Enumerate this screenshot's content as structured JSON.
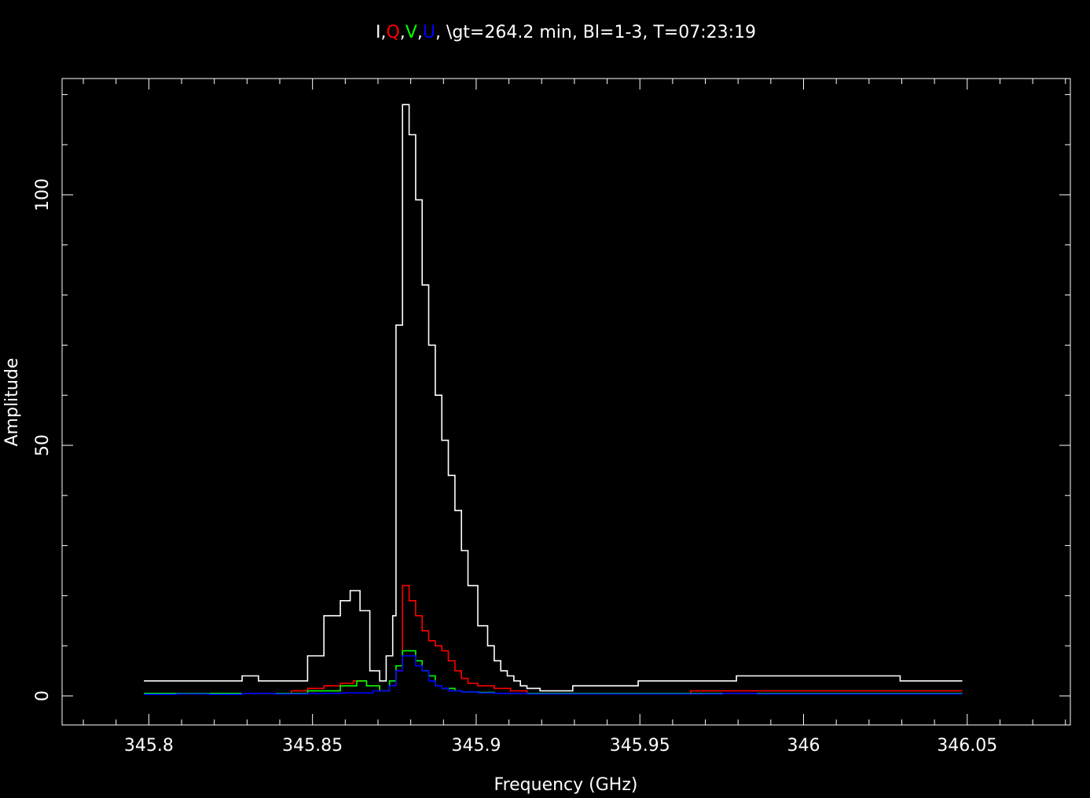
{
  "chart_data": {
    "type": "line",
    "step": true,
    "title": {
      "parts": [
        {
          "text": "I",
          "color": "#ffffff"
        },
        {
          "text": ",",
          "color": "#ffffff"
        },
        {
          "text": "Q",
          "color": "#ff0000"
        },
        {
          "text": ",",
          "color": "#ffffff"
        },
        {
          "text": "V",
          "color": "#00ff00"
        },
        {
          "text": ",",
          "color": "#ffffff"
        },
        {
          "text": "U",
          "color": "#0000ff"
        },
        {
          "text": ", \\gt=264.2 min, Bl=1-3, T=07:23:19",
          "color": "#ffffff"
        }
      ]
    },
    "xlabel": "Frequency (GHz)",
    "ylabel": "Amplitude",
    "xlim": [
      345.7735,
      346.0815
    ],
    "ylim": [
      -5.8,
      123.2
    ],
    "xticks": [
      {
        "value": 345.8,
        "label": "345.8"
      },
      {
        "value": 345.85,
        "label": "345.85"
      },
      {
        "value": 345.9,
        "label": "345.9"
      },
      {
        "value": 345.95,
        "label": "345.95"
      },
      {
        "value": 346.0,
        "label": "346"
      },
      {
        "value": 346.05,
        "label": "346.05"
      }
    ],
    "yticks": [
      {
        "value": 0,
        "label": "0"
      },
      {
        "value": 50,
        "label": "50"
      },
      {
        "value": 100,
        "label": "100"
      }
    ],
    "grid": false,
    "background": "#000000",
    "axis_color": "#ffffff",
    "series": [
      {
        "color": "#ffffff",
        "x": [
          345.7985,
          345.8035,
          345.8085,
          345.8135,
          345.8185,
          345.8235,
          345.8285,
          345.8335,
          345.8385,
          345.8435,
          345.8485,
          345.8535,
          345.8585,
          345.8615,
          345.8645,
          345.8675,
          345.8705,
          345.8725,
          345.8745,
          345.8755,
          345.8775,
          345.8795,
          345.8815,
          345.8835,
          345.8855,
          345.8875,
          345.8895,
          345.8915,
          345.8935,
          345.8955,
          345.8975,
          345.9005,
          345.9035,
          345.9055,
          345.9075,
          345.9095,
          345.9115,
          345.9135,
          345.9155,
          345.9195,
          345.9295,
          345.9395,
          345.9495,
          345.9595,
          345.9695,
          345.9795,
          345.9895,
          345.9995,
          346.0095,
          346.0195,
          346.0295,
          346.0395,
          346.0485
        ],
        "y": [
          3,
          3,
          3,
          3,
          3,
          3,
          4,
          3,
          3,
          3,
          8,
          16,
          19,
          21,
          17,
          5,
          3,
          8,
          16,
          74,
          118,
          112,
          99,
          82,
          70,
          60,
          51,
          44,
          37,
          29,
          22,
          14,
          10,
          7,
          5,
          4,
          3,
          2,
          1.5,
          1,
          2,
          2,
          3,
          3,
          3,
          4,
          4,
          4,
          4,
          4,
          3,
          3,
          3
        ]
      },
      {
        "color": "#ff0000",
        "x": [
          345.7985,
          345.8085,
          345.8185,
          345.8285,
          345.8385,
          345.8435,
          345.8485,
          345.8535,
          345.8585,
          345.8625,
          345.8665,
          345.8705,
          345.8735,
          345.8755,
          345.8775,
          345.8795,
          345.8815,
          345.8835,
          345.8855,
          345.8875,
          345.8895,
          345.8915,
          345.8935,
          345.8955,
          345.8975,
          345.9005,
          345.9055,
          345.9105,
          345.9155,
          345.9255,
          345.9355,
          345.9455,
          345.9555,
          345.9655,
          345.9755,
          345.9855,
          345.9955,
          346.0055,
          346.0155,
          346.0255,
          346.0355,
          346.0485
        ],
        "y": [
          0.5,
          0.5,
          0.5,
          0.5,
          0.5,
          1,
          1.5,
          2,
          2.5,
          3,
          2,
          1,
          2,
          5,
          22,
          19,
          16,
          13,
          11,
          10,
          9,
          7,
          5,
          3.5,
          2.5,
          2,
          1.5,
          1,
          0.5,
          0.5,
          0.5,
          0.5,
          0.5,
          1,
          1,
          1,
          1,
          1,
          1,
          1,
          1,
          1
        ]
      },
      {
        "color": "#00ff00",
        "x": [
          345.7985,
          345.8085,
          345.8185,
          345.8285,
          345.8385,
          345.8485,
          345.8585,
          345.8635,
          345.8665,
          345.8705,
          345.8735,
          345.8755,
          345.8775,
          345.8795,
          345.8815,
          345.8835,
          345.8855,
          345.8875,
          345.8895,
          345.8915,
          345.8935,
          345.8955,
          345.9005,
          345.9055,
          345.9155,
          345.9255,
          345.9355,
          345.9455,
          345.9555,
          345.9655,
          345.9755,
          345.9855,
          345.9955,
          346.0055,
          346.0155,
          346.0255,
          346.0355,
          346.0485
        ],
        "y": [
          0.5,
          0.5,
          0.5,
          0.5,
          0.5,
          1,
          2,
          3,
          2,
          1,
          3,
          6,
          9,
          9,
          7,
          5,
          4,
          2,
          1.5,
          1.5,
          1,
          0.8,
          0.7,
          0.5,
          0.5,
          0.5,
          0.5,
          0.5,
          0.5,
          0.5,
          0.5,
          0.5,
          0.5,
          0.5,
          0.5,
          0.5,
          0.5,
          0.5
        ]
      },
      {
        "color": "#0000ff",
        "x": [
          345.7985,
          345.8085,
          345.8185,
          345.8285,
          345.8385,
          345.8485,
          345.8585,
          345.8685,
          345.8735,
          345.8755,
          345.8775,
          345.8795,
          345.8815,
          345.8835,
          345.8855,
          345.8875,
          345.8895,
          345.8915,
          345.8955,
          345.9005,
          345.9055,
          345.9155,
          345.9255,
          345.9355,
          345.9455,
          345.9555,
          345.9655,
          345.9755,
          345.9855,
          345.9955,
          346.0055,
          346.0155,
          346.0255,
          346.0355,
          346.0485
        ],
        "y": [
          0.3,
          0.4,
          0.3,
          0.5,
          0.4,
          0.5,
          0.6,
          1,
          2,
          5,
          8,
          8,
          6,
          5,
          3,
          2,
          1.5,
          1,
          0.8,
          0.6,
          0.5,
          0.4,
          0.4,
          0.4,
          0.4,
          0.4,
          0.4,
          0.5,
          0.4,
          0.4,
          0.4,
          0.4,
          0.4,
          0.4,
          0.4
        ]
      }
    ]
  }
}
